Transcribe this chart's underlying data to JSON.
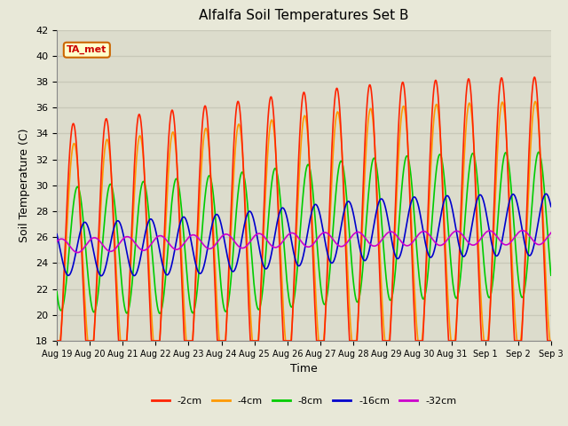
{
  "title": "Alfalfa Soil Temperatures Set B",
  "xlabel": "Time",
  "ylabel": "Soil Temperature (C)",
  "ylim": [
    18,
    42
  ],
  "yticks": [
    18,
    20,
    22,
    24,
    26,
    28,
    30,
    32,
    34,
    36,
    38,
    40,
    42
  ],
  "fig_bg_color": "#e8e8d8",
  "plot_bg_color": "#dcdccc",
  "grid_color": "#c8c8b8",
  "annotation_text": "TA_met",
  "annotation_color": "#cc0000",
  "annotation_bg": "#ffffcc",
  "annotation_border": "#cc6600",
  "lines": {
    "2cm": {
      "color": "#ff2200",
      "lw": 1.2,
      "label": "-2cm"
    },
    "4cm": {
      "color": "#ff9900",
      "lw": 1.2,
      "label": "-4cm"
    },
    "8cm": {
      "color": "#00cc00",
      "lw": 1.2,
      "label": "-8cm"
    },
    "16cm": {
      "color": "#0000cc",
      "lw": 1.2,
      "label": "-16cm"
    },
    "32cm": {
      "color": "#cc00cc",
      "lw": 1.2,
      "label": "-32cm"
    }
  },
  "n_days": 15,
  "points_per_day": 144,
  "day_labels": [
    "Aug 19",
    "Aug 20",
    "Aug 21",
    "Aug 22",
    "Aug 23",
    "Aug 24",
    "Aug 25",
    "Aug 26",
    "Aug 27",
    "Aug 28",
    "Aug 29",
    "Aug 30",
    "Aug 31",
    "Sep 1",
    "Sep 2",
    "Sep 3"
  ]
}
